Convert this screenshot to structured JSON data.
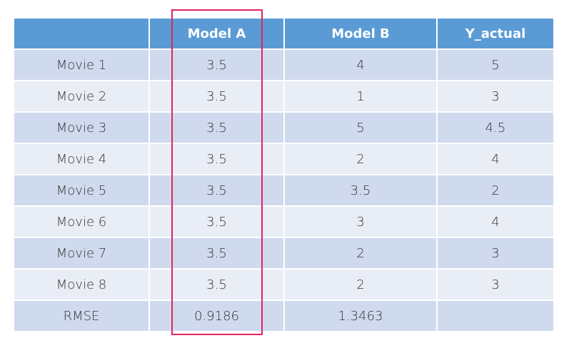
{
  "table": {
    "header": [
      "Model A",
      "Model B",
      "Y_actual"
    ],
    "rows": [
      [
        "Movie 1",
        3.5,
        4,
        5
      ],
      [
        "Movie 2",
        3.5,
        1,
        3
      ],
      [
        "Movie 3",
        3.5,
        5,
        4.5
      ],
      [
        "Movie 4",
        3.5,
        2,
        4
      ],
      [
        "Movie 5",
        3.5,
        3.5,
        2
      ],
      [
        "Movie 6",
        3.5,
        3,
        4
      ],
      [
        "Movie 7",
        3.5,
        2,
        3
      ],
      [
        "Movie 8",
        3.5,
        2,
        3
      ],
      [
        "RMSE",
        0.9186,
        1.3463
      ]
    ]
  }
}
